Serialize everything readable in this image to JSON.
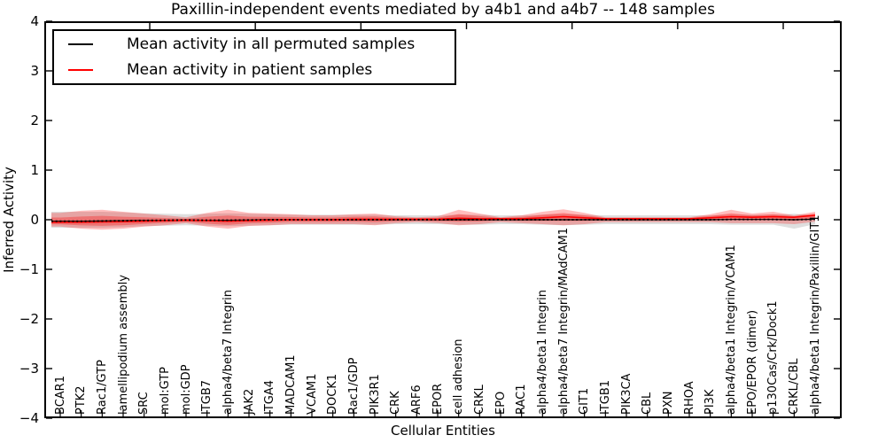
{
  "title": "Paxillin-independent events mediated by a4b1 and a4b7 -- 148 samples",
  "legend": {
    "items": [
      {
        "label": "Mean activity in all permuted samples",
        "color": "#000000"
      },
      {
        "label": "Mean activity in patient samples",
        "color": "#ff0000"
      }
    ]
  },
  "axes": {
    "xlabel": "Cellular Entities",
    "ylabel": "Inferred Activity",
    "yticks": [
      4,
      3,
      2,
      1,
      0,
      -1,
      -2,
      -3,
      -4
    ]
  },
  "chart_data": {
    "type": "line",
    "title": "Paxillin-independent events mediated by a4b1 and a4b7 -- 148 samples",
    "xlabel": "Cellular Entities",
    "ylabel": "Inferred Activity",
    "ylim": [
      -4,
      4
    ],
    "grid": false,
    "legend_position": "upper left",
    "categories": [
      "BCAR1",
      "PTK2",
      "Rac1/GTP",
      "lamellipodium assembly",
      "SRC",
      "mol:GTP",
      "mol:GDP",
      "ITGB7",
      "alpha4/beta7 Integrin",
      "JAK2",
      "ITGA4",
      "MADCAM1",
      "VCAM1",
      "DOCK1",
      "Rac1/GDP",
      "PIK3R1",
      "CRK",
      "ARF6",
      "EPOR",
      "cell adhesion",
      "CRKL",
      "EPO",
      "RAC1",
      "alpha4/beta1 Integrin",
      "alpha4/beta7 Integrin/MAdCAM1",
      "GIT1",
      "ITGB1",
      "PIK3CA",
      "CBL",
      "PXN",
      "RHOA",
      "PI3K",
      "alpha4/beta1 Integrin/VCAM1",
      "EPO/EPOR (dimer)",
      "p130Cas/Crk/Dock1",
      "CRKL/CBL",
      "alpha4/beta1 Integrin/Paxillin/GIT1"
    ],
    "series": [
      {
        "name": "Mean activity in all permuted samples",
        "color": "#000000",
        "style": "solid+dotted",
        "values": [
          -0.03,
          -0.03,
          -0.025,
          -0.02,
          -0.015,
          -0.01,
          -0.005,
          -0.01,
          -0.01,
          -0.005,
          0,
          0,
          0,
          0,
          0,
          0,
          0,
          0,
          0,
          0,
          0,
          0,
          0,
          0,
          0,
          0,
          0,
          0,
          0,
          0,
          0,
          0,
          0.005,
          0.005,
          0.005,
          0,
          0.01
        ]
      },
      {
        "name": "Mean activity in patient samples",
        "color": "#ff0000",
        "style": "solid",
        "values": [
          -0.05,
          -0.05,
          -0.045,
          -0.04,
          -0.03,
          -0.02,
          -0.01,
          -0.02,
          -0.03,
          -0.02,
          -0.01,
          0,
          0,
          0,
          0.01,
          0.01,
          0.01,
          0.01,
          0.01,
          0.03,
          0.02,
          0.02,
          0.02,
          0.04,
          0.06,
          0.04,
          0.02,
          0.02,
          0.02,
          0.02,
          0.02,
          0.04,
          0.06,
          0.05,
          0.06,
          0.05,
          0.09
        ]
      }
    ],
    "bands": [
      {
        "name": "permuted samples spread",
        "color": "#000000",
        "opacity": 0.13,
        "upper": [
          0.16,
          0.16,
          0.16,
          0.15,
          0.13,
          0.12,
          0.11,
          0.12,
          0.13,
          0.12,
          0.11,
          0.1,
          0.1,
          0.1,
          0.1,
          0.1,
          0.09,
          0.09,
          0.09,
          0.1,
          0.1,
          0.09,
          0.09,
          0.1,
          0.11,
          0.1,
          0.09,
          0.09,
          0.09,
          0.09,
          0.09,
          0.09,
          0.1,
          0.1,
          0.1,
          0.12,
          0.09
        ],
        "lower": [
          -0.16,
          -0.16,
          -0.16,
          -0.15,
          -0.13,
          -0.12,
          -0.11,
          -0.12,
          -0.13,
          -0.12,
          -0.11,
          -0.1,
          -0.1,
          -0.1,
          -0.1,
          -0.1,
          -0.09,
          -0.09,
          -0.09,
          -0.1,
          -0.1,
          -0.09,
          -0.09,
          -0.1,
          -0.11,
          -0.1,
          -0.09,
          -0.09,
          -0.09,
          -0.09,
          -0.09,
          -0.09,
          -0.1,
          -0.1,
          -0.1,
          -0.18,
          -0.09
        ]
      },
      {
        "name": "patient samples spread (outer)",
        "color": "#ff0000",
        "opacity": 0.26,
        "upper": [
          0.14,
          0.18,
          0.2,
          0.16,
          0.125,
          0.09,
          0.05,
          0.14,
          0.2,
          0.14,
          0.125,
          0.11,
          0.09,
          0.09,
          0.11,
          0.125,
          0.07,
          0.05,
          0.07,
          0.2,
          0.125,
          0.05,
          0.09,
          0.16,
          0.21,
          0.14,
          0.05,
          0.05,
          0.05,
          0.05,
          0.05,
          0.11,
          0.2,
          0.125,
          0.16,
          0.09,
          0.16
        ],
        "lower": [
          -0.14,
          -0.18,
          -0.2,
          -0.18,
          -0.14,
          -0.11,
          -0.07,
          -0.14,
          -0.18,
          -0.125,
          -0.11,
          -0.09,
          -0.09,
          -0.09,
          -0.09,
          -0.11,
          -0.07,
          -0.05,
          -0.07,
          -0.11,
          -0.09,
          -0.05,
          -0.07,
          -0.09,
          -0.11,
          -0.09,
          -0.05,
          -0.05,
          -0.05,
          -0.05,
          -0.05,
          -0.05,
          -0.07,
          -0.07,
          -0.07,
          -0.09,
          -0.04
        ]
      },
      {
        "name": "patient samples spread (inner)",
        "color": "#ff0000",
        "opacity": 0.3,
        "upper": [
          0.045,
          0.065,
          0.078,
          0.06,
          0.048,
          0.035,
          0.02,
          0.06,
          0.085,
          0.06,
          0.058,
          0.055,
          0.045,
          0.045,
          0.06,
          0.068,
          0.04,
          0.03,
          0.04,
          0.115,
          0.073,
          0.035,
          0.055,
          0.1,
          0.135,
          0.09,
          0.035,
          0.035,
          0.035,
          0.035,
          0.035,
          0.075,
          0.13,
          0.088,
          0.11,
          0.07,
          0.125
        ],
        "lower": [
          -0.095,
          -0.115,
          -0.123,
          -0.11,
          -0.085,
          -0.065,
          -0.04,
          -0.08,
          -0.105,
          -0.073,
          -0.06,
          -0.045,
          -0.045,
          -0.045,
          -0.04,
          -0.05,
          -0.03,
          -0.02,
          -0.03,
          -0.04,
          -0.035,
          -0.015,
          -0.025,
          -0.025,
          -0.025,
          -0.025,
          -0.015,
          -0.015,
          -0.015,
          -0.015,
          -0.015,
          -0.005,
          -0.005,
          -0.01,
          -0.005,
          -0.02,
          0.025
        ]
      }
    ]
  }
}
